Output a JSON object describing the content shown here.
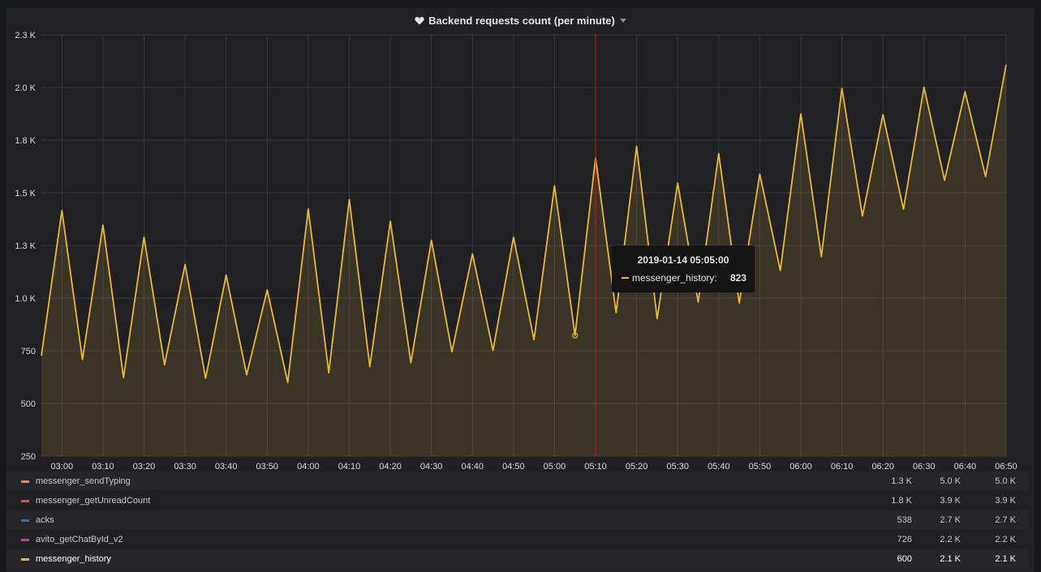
{
  "panel": {
    "title": "Backend requests count (per minute)"
  },
  "tooltip": {
    "time": "2019-01-14 05:05:00",
    "series": "messenger_history:",
    "value": "823"
  },
  "legend": [
    {
      "name": "messenger_sendTyping",
      "color": "#ef843c",
      "min": "1.3 K",
      "max": "5.0 K",
      "current": "5.0 K"
    },
    {
      "name": "messenger_getUnreadCount",
      "color": "#e24d42",
      "min": "1.8 K",
      "max": "3.9 K",
      "current": "3.9 K"
    },
    {
      "name": "acks",
      "color": "#1f78c1",
      "min": "538",
      "max": "2.7 K",
      "current": "2.7 K"
    },
    {
      "name": "avito_getChatById_v2",
      "color": "#ba43a9",
      "min": "726",
      "max": "2.2 K",
      "current": "2.2 K"
    },
    {
      "name": "messenger_history",
      "color": "#eab839",
      "min": "600",
      "max": "2.1 K",
      "current": "2.1 K"
    }
  ],
  "chart_data": {
    "type": "area",
    "title": "Backend requests count (per minute)",
    "x_tick_labels": [
      "03:00",
      "03:10",
      "03:20",
      "03:30",
      "03:40",
      "03:50",
      "04:00",
      "04:10",
      "04:20",
      "04:30",
      "04:40",
      "04:50",
      "05:00",
      "05:10",
      "05:20",
      "05:30",
      "05:40",
      "05:50",
      "06:00",
      "06:10",
      "06:20",
      "06:30",
      "06:40",
      "06:50"
    ],
    "y_tick_labels": [
      "250",
      "500",
      "750",
      "1.0 K",
      "1.3 K",
      "1.5 K",
      "1.8 K",
      "2.0 K",
      "2.3 K"
    ],
    "ylim": [
      250,
      2250
    ],
    "xlim": [
      "02:55",
      "06:50"
    ],
    "grid": true,
    "crosshair_time": "05:10",
    "hover_point": {
      "x": "05:05",
      "y": 823
    },
    "series": [
      {
        "name": "messenger_history",
        "color": "#eab839",
        "x": [
          "02:55",
          "03:00",
          "03:05",
          "03:10",
          "03:15",
          "03:20",
          "03:25",
          "03:30",
          "03:35",
          "03:40",
          "03:45",
          "03:50",
          "03:55",
          "04:00",
          "04:05",
          "04:10",
          "04:15",
          "04:20",
          "04:25",
          "04:30",
          "04:35",
          "04:40",
          "04:45",
          "04:50",
          "04:55",
          "05:00",
          "05:05",
          "05:10",
          "05:15",
          "05:20",
          "05:25",
          "05:30",
          "05:35",
          "05:40",
          "05:45",
          "05:50",
          "05:55",
          "06:00",
          "06:05",
          "06:10",
          "06:15",
          "06:20",
          "06:25",
          "06:30",
          "06:35",
          "06:40",
          "06:45",
          "06:50"
        ],
        "values": [
          727,
          1416,
          708,
          1347,
          623,
          1290,
          684,
          1160,
          620,
          1109,
          636,
          1039,
          600,
          1423,
          646,
          1468,
          675,
          1365,
          694,
          1275,
          745,
          1210,
          752,
          1290,
          802,
          1533,
          823,
          1666,
          931,
          1721,
          903,
          1546,
          981,
          1686,
          977,
          1589,
          1131,
          1875,
          1197,
          1996,
          1390,
          1871,
          1422,
          2001,
          1560,
          1980,
          1577,
          2108
        ]
      }
    ]
  }
}
